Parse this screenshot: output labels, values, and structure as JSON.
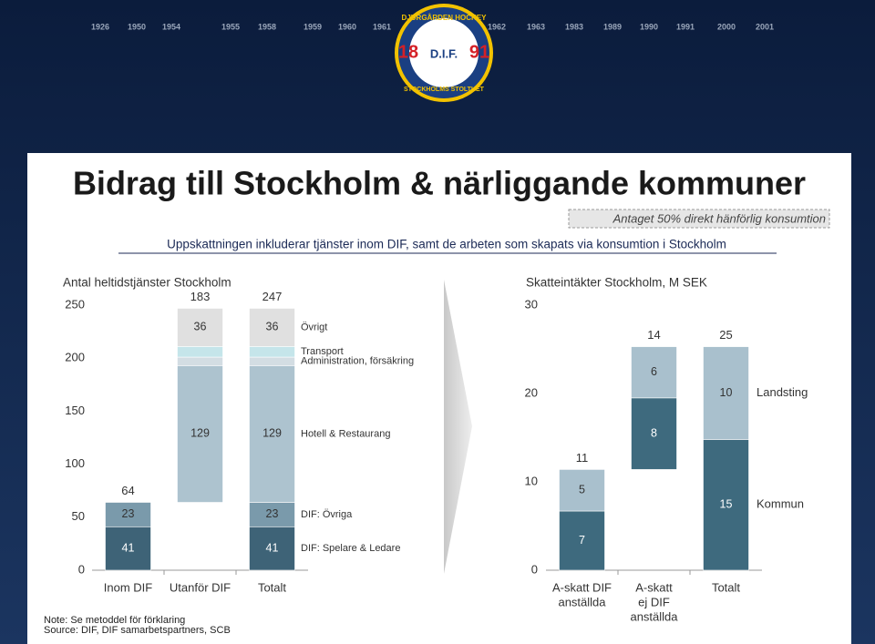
{
  "banner": {
    "years": [
      "1926",
      "1950",
      "1954",
      "1955",
      "1958",
      "1959",
      "1960",
      "1961",
      "1962",
      "1963",
      "1983",
      "1989",
      "1990",
      "1991",
      "2000",
      "2001"
    ],
    "logo_top": "DJURGÅRDEN HOCKEY",
    "logo_left": "18",
    "logo_right": "91",
    "logo_center": "D.I.F.",
    "logo_bottom": "STOCKHOLMS STOLTHET"
  },
  "header": {
    "title": "Bidrag till Stockholm & närliggande kommuner",
    "assumption": "Antaget 50% direkt hänförlig konsumtion",
    "subtitle": "Uppskattningen inkluderar tjänster inom DIF, samt de arbeten som skapats via konsumtion i Stockholm"
  },
  "chart_data": [
    {
      "type": "waterfall",
      "title": "Antal heltidstjänster Stockholm",
      "categories": [
        [
          "Inom DIF"
        ],
        [
          "Utanför DIF"
        ],
        [
          "Totalt"
        ]
      ],
      "last_is_total": true,
      "series": [
        {
          "name": "DIF: Spelare & Ledare",
          "color": "#3e6377",
          "values": [
            41,
            null,
            41
          ]
        },
        {
          "name": "DIF: Övriga",
          "color": "#7a9aab",
          "values": [
            23,
            null,
            23
          ]
        },
        {
          "name": "Hotell & Restaurang",
          "color": "#adc3cf",
          "values": [
            null,
            129,
            129
          ]
        },
        {
          "name": "Administration, försäkring",
          "color": "#d3dde3",
          "values": [
            null,
            8,
            8
          ],
          "show_labels": false
        },
        {
          "name": "Transport",
          "color": "#c5e5ea",
          "values": [
            null,
            10,
            10
          ],
          "show_labels": false
        },
        {
          "name": "Övrigt",
          "color": "#e0e0e0",
          "values": [
            null,
            36,
            36
          ]
        }
      ],
      "totals": [
        64,
        183,
        247
      ],
      "ylim": [
        0,
        250
      ],
      "yticks": [
        0,
        50,
        100,
        150,
        200,
        250
      ]
    },
    {
      "type": "waterfall",
      "title": "Skatteintäkter Stockholm, M SEK",
      "categories": [
        [
          "A-skatt DIF",
          "anställda"
        ],
        [
          "A-skatt",
          "ej DIF",
          "anställda"
        ],
        [
          "Totalt"
        ]
      ],
      "last_is_total": true,
      "series": [
        {
          "name": "Kommun",
          "color": "#3e6a7e",
          "values": [
            6.7,
            8.1,
            14.8
          ],
          "value_labels": [
            "7",
            "8",
            "15"
          ]
        },
        {
          "name": "Landsting",
          "color": "#a9c0cd",
          "values": [
            4.7,
            5.8,
            10.5
          ],
          "value_labels": [
            "5",
            "6",
            "10"
          ]
        }
      ],
      "totals": [
        11,
        14,
        25
      ],
      "ylim": [
        0,
        30
      ],
      "yticks": [
        0,
        10,
        20,
        30
      ]
    }
  ],
  "notes": {
    "note": "Note: Se metoddel för förklaring",
    "source": "Source: DIF, DIF samarbetspartners, SCB"
  }
}
